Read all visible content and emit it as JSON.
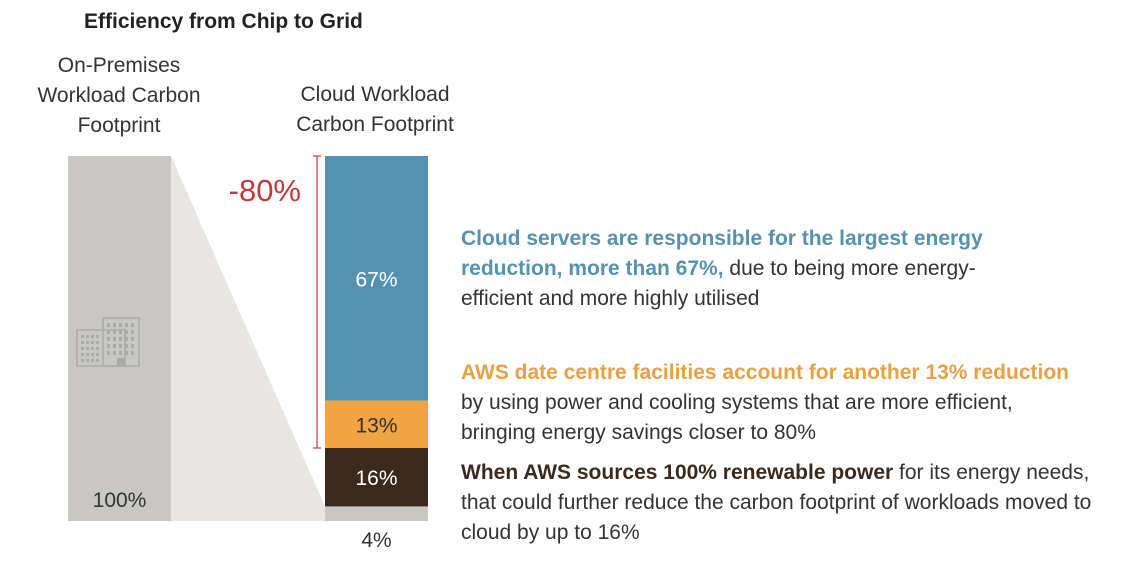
{
  "title": "Efficiency from Chip to Grid",
  "columns": {
    "onprem": [
      "On-Premises",
      "Workload Carbon",
      "Footprint"
    ],
    "cloud": [
      "Cloud Workload",
      "Carbon Footprint"
    ]
  },
  "reduction_label": "-80%",
  "colors": {
    "onprem_bar": "#c8c7c4",
    "funnel": "#e7e6e3",
    "servers": "#5592b2",
    "facilities": "#f0a443",
    "renewable": "#3a2a1e",
    "remaining": "#c8c7c4",
    "reduction": "#c0393b",
    "servers_text": "#5592b2",
    "facilities_text": "#e8a043",
    "renewable_text": "#3a2a1e",
    "building_icon": "#aaaaa8"
  },
  "icons": {
    "building": "building-icon"
  },
  "chart_data": {
    "type": "bar",
    "title": "Efficiency from Chip to Grid",
    "bars": [
      {
        "name": "On-Premises Workload Carbon Footprint",
        "segments": [
          {
            "label": "100%",
            "value": 100
          }
        ]
      },
      {
        "name": "Cloud Workload Carbon Footprint",
        "segments": [
          {
            "label": "4%",
            "value": 4
          },
          {
            "label": "16%",
            "value": 16
          },
          {
            "label": "13%",
            "value": 13
          },
          {
            "label": "67%",
            "value": 67
          }
        ]
      }
    ],
    "reduction": "-80%",
    "ylim": [
      0,
      100
    ]
  },
  "annotations": {
    "servers": {
      "highlight": "Cloud servers are responsible for the largest energy reduction, more than 67%,",
      "rest": " due to being more energy-efficient and more highly utilised"
    },
    "facilities": {
      "highlight": "AWS date centre facilities account for another 13% reduction",
      "rest": " by using power and cooling systems that are more efficient, bringing energy savings closer to 80%"
    },
    "renewable": {
      "highlight": "When AWS sources 100% renewable power",
      "rest": " for its energy needs, that could further reduce the carbon footprint of workloads moved to cloud by up to 16%"
    }
  }
}
